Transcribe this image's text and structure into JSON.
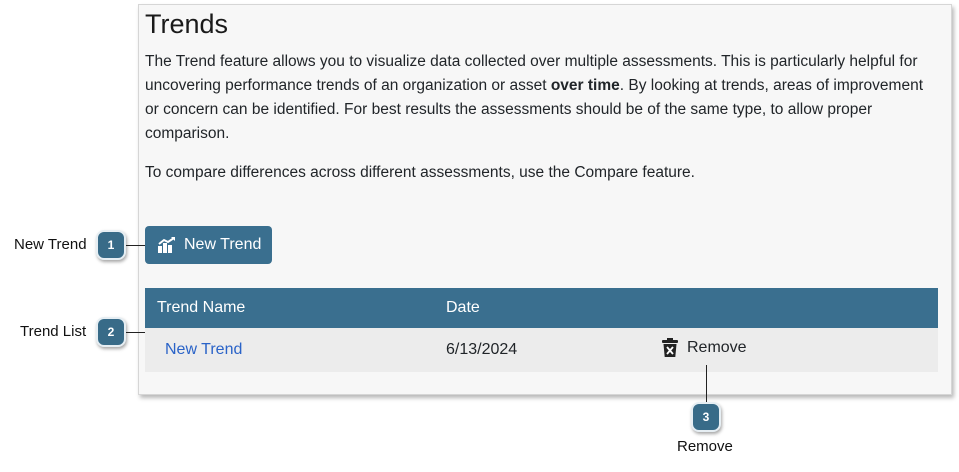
{
  "page": {
    "title": "Trends",
    "intro": {
      "part1": "The Trend feature allows you to visualize data collected over multiple assessments. This is particularly helpful for uncovering performance trends of an organization or asset ",
      "bold": "over time",
      "part2": ". By looking at trends, areas of improvement or concern can be identified. For best results the assessments should be of the same type, to allow proper comparison."
    },
    "compare_text": "To compare differences across different assessments, use the Compare feature."
  },
  "new_trend_button": {
    "label": "New Trend",
    "icon": "chart-icon"
  },
  "table": {
    "columns": [
      "Trend Name",
      "Date"
    ],
    "rows": [
      {
        "name": "New Trend",
        "date": "6/13/2024",
        "action": "Remove",
        "action_icon": "trash-icon"
      }
    ]
  },
  "callouts": [
    {
      "number": "1",
      "label": "New Trend"
    },
    {
      "number": "2",
      "label": "Trend List"
    },
    {
      "number": "3",
      "label": "Remove"
    }
  ],
  "colors": {
    "accent": "#3a6f8f",
    "link": "#2a63c8",
    "badge": "#386b88"
  }
}
